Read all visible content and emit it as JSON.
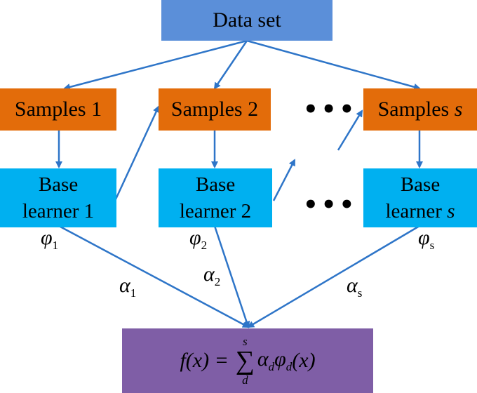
{
  "dataset": {
    "label": "Data set"
  },
  "samples": [
    {
      "prefix": "Samples",
      "suffix": "1"
    },
    {
      "prefix": "Samples",
      "suffix": "2"
    },
    {
      "prefix": "Samples",
      "suffix": "s"
    }
  ],
  "learners": [
    {
      "line1": "Base",
      "line2_prefix": "learner",
      "line2_suffix": "1"
    },
    {
      "line1": "Base",
      "line2_prefix": "learner",
      "line2_suffix": "2"
    },
    {
      "line1": "Base",
      "line2_prefix": "learner",
      "line2_suffix": "s"
    }
  ],
  "phi": [
    {
      "symbol": "φ",
      "sub": "1"
    },
    {
      "symbol": "φ",
      "sub": "2"
    },
    {
      "symbol": "φ",
      "sub": "s"
    }
  ],
  "alpha": [
    {
      "symbol": "α",
      "sub": "1"
    },
    {
      "symbol": "α",
      "sub": "2"
    },
    {
      "symbol": "α",
      "sub": "s"
    }
  ],
  "ellipsis": "•••",
  "formula": {
    "lhs": "f(x) =",
    "sum_symbol": "∑",
    "sum_upper": "s",
    "sum_lower": "d",
    "term_alpha": "α",
    "term_alpha_sub": "d",
    "term_phi": "φ",
    "term_phi_sub": "d",
    "term_arg": "(x)"
  },
  "colors": {
    "dataset": "#5b8fd9",
    "samples": "#e36c0a",
    "learners": "#00b0f0",
    "formula": "#7f5ea6",
    "arrows": "#2e75c8"
  }
}
